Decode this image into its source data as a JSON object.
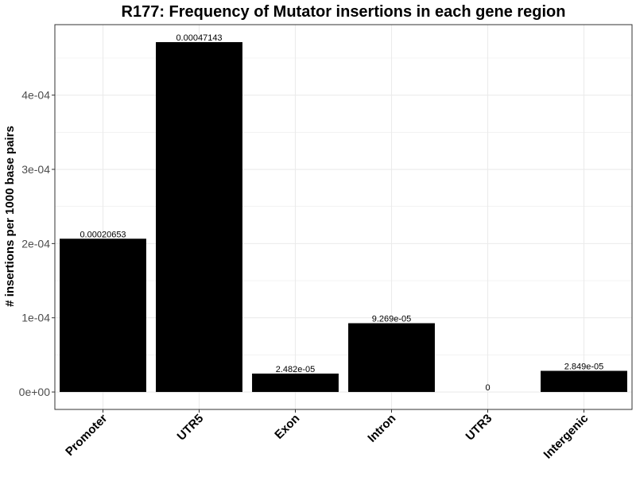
{
  "chart_data": {
    "type": "bar",
    "title": "R177: Frequency of Mutator insertions in each gene region",
    "xlabel": "",
    "ylabel": "# insertions per 1000 base pairs",
    "categories": [
      "Promoter",
      "UTR5",
      "Exon",
      "Intron",
      "UTR3",
      "Intergenic"
    ],
    "values": [
      0.00020653,
      0.00047143,
      2.482e-05,
      9.269e-05,
      0,
      2.849e-05
    ],
    "data_labels": [
      "0.00020653",
      "0.00047143",
      "2.482e-05",
      "9.269e-05",
      "0",
      "2.849e-05"
    ],
    "yticks": [
      0,
      0.0001,
      0.0002,
      0.0003,
      0.0004
    ],
    "ytick_labels": [
      "0e+00",
      "1e-04",
      "2e-04",
      "3e-04",
      "4e-04"
    ],
    "ylim": [
      -2.35e-05,
      0.000495
    ],
    "grid": true,
    "bar_color": "#000000",
    "gridline_color": "#ebebeb",
    "panel_border_color": "#333333"
  }
}
